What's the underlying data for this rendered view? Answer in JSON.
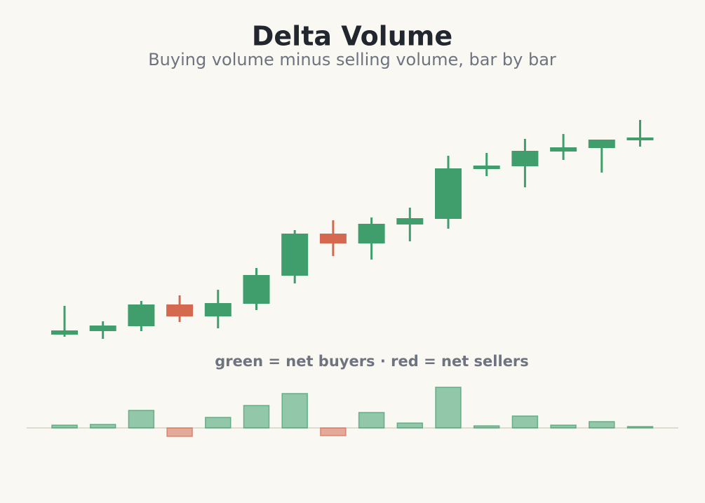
{
  "chart_data": [
    {
      "type": "candlestick",
      "title": "Delta Volume",
      "subtitle": "Buying volume minus selling volume, bar by bar",
      "up_color": "#3f9e6b",
      "down_color": "#d4694f",
      "open": [
        23,
        28,
        35,
        66,
        49,
        67,
        107,
        167,
        153,
        180,
        188,
        259,
        263,
        284,
        289,
        300
      ],
      "high": [
        64,
        42,
        71,
        79,
        87,
        118,
        172,
        186,
        190,
        204,
        278,
        282,
        302,
        309,
        301,
        329
      ],
      "low": [
        20,
        17,
        28,
        41,
        32,
        58,
        96,
        135,
        130,
        156,
        174,
        249,
        233,
        272,
        254,
        291
      ],
      "close": [
        29,
        36,
        66,
        49,
        68,
        108,
        167,
        153,
        181,
        189,
        260,
        264,
        285,
        290,
        301,
        304
      ]
    },
    {
      "type": "bar",
      "annotation": "green = net buyers · red = net sellers",
      "up_color": "#3f9e6b",
      "down_color": "#d4694f",
      "values": [
        4,
        5,
        25,
        -12,
        15,
        32,
        49,
        -11,
        22,
        7,
        58,
        3,
        17,
        4,
        9,
        2
      ]
    }
  ]
}
